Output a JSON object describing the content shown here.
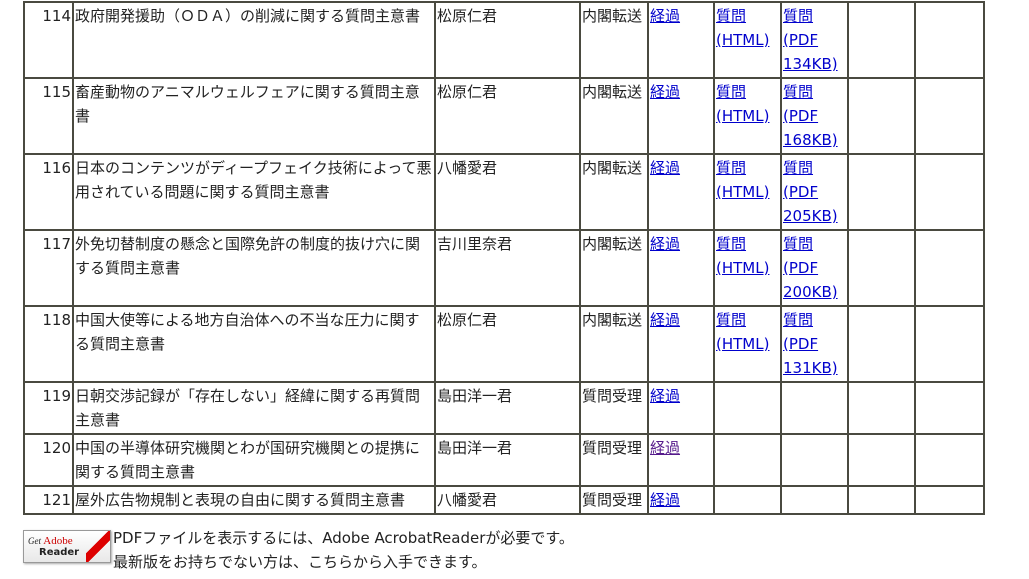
{
  "rows": [
    {
      "num": "114",
      "title": "政府開発援助（ＯＤＡ）の削減に関する質問主意書",
      "submitter": "松原仁君",
      "status": "内閣転送",
      "progress": "経過",
      "html_line1": "質問",
      "html_line2": "(HTML)",
      "pdf_line1": "質問",
      "pdf_line2": "(PDF",
      "pdf_line3": "134KB)"
    },
    {
      "num": "115",
      "title": "畜産動物のアニマルウェルフェアに関する質問主意書",
      "submitter": "松原仁君",
      "status": "内閣転送",
      "progress": "経過",
      "html_line1": "質問",
      "html_line2": "(HTML)",
      "pdf_line1": "質問",
      "pdf_line2": "(PDF",
      "pdf_line3": "168KB)"
    },
    {
      "num": "116",
      "title": "日本のコンテンツがディープフェイク技術によって悪用されている問題に関する質問主意書",
      "submitter": "八幡愛君",
      "status": "内閣転送",
      "progress": "経過",
      "html_line1": "質問",
      "html_line2": "(HTML)",
      "pdf_line1": "質問",
      "pdf_line2": "(PDF",
      "pdf_line3": "205KB)"
    },
    {
      "num": "117",
      "title": "外免切替制度の懸念と国際免許の制度的抜け穴に関する質問主意書",
      "submitter": "吉川里奈君",
      "status": "内閣転送",
      "progress": "経過",
      "html_line1": "質問",
      "html_line2": "(HTML)",
      "pdf_line1": "質問",
      "pdf_line2": "(PDF",
      "pdf_line3": "200KB)"
    },
    {
      "num": "118",
      "title": "中国大使等による地方自治体への不当な圧力に関する質問主意書",
      "submitter": "松原仁君",
      "status": "内閣転送",
      "progress": "経過",
      "html_line1": "質問",
      "html_line2": "(HTML)",
      "pdf_line1": "質問",
      "pdf_line2": "(PDF",
      "pdf_line3": "131KB)"
    },
    {
      "num": "119",
      "title": "日朝交渉記録が「存在しない」経緯に関する再質問主意書",
      "submitter": "島田洋一君",
      "status": "質問受理",
      "progress": "経過"
    },
    {
      "num": "120",
      "title": "中国の半導体研究機関とわが国研究機関との提携に関する質問主意書",
      "submitter": "島田洋一君",
      "status": "質問受理",
      "progress": "経過"
    },
    {
      "num": "121",
      "title": "屋外広告物規制と表現の自由に関する質問主意書",
      "submitter": "八幡愛君",
      "status": "質問受理",
      "progress": "経過"
    }
  ],
  "footer": {
    "badge_get": "Get",
    "badge_adobe": "Adobe",
    "badge_reader": "Reader",
    "line1": "PDFファイルを表示するには、Adobe AcrobatReaderが必要です。",
    "line2": "最新版をお持ちでない方は、こちらから入手できます。"
  },
  "colors": {
    "link": "#0000cc",
    "visited_link": "#551a8b",
    "border": "#4a4a40"
  }
}
